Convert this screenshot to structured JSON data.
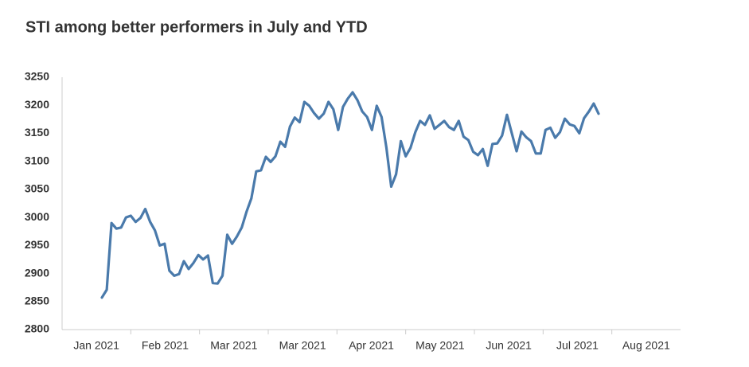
{
  "chart_data": {
    "type": "line",
    "title": "STI among better performers in July and YTD",
    "x_labels": [
      "Jan 2021",
      "Feb 2021",
      "Mar 2021",
      "Mar 2021",
      "Apr 2021",
      "May 2021",
      "Jun 2021",
      "Jul 2021",
      "Aug 2021"
    ],
    "color": "#4a7aab",
    "values": [
      2857,
      2871,
      2990,
      2980,
      2982,
      3000,
      3003,
      2992,
      2999,
      3015,
      2992,
      2977,
      2950,
      2953,
      2905,
      2896,
      2899,
      2922,
      2908,
      2919,
      2933,
      2925,
      2932,
      2883,
      2882,
      2896,
      2969,
      2953,
      2966,
      2982,
      3010,
      3034,
      3082,
      3084,
      3108,
      3099,
      3109,
      3135,
      3126,
      3162,
      3178,
      3170,
      3206,
      3199,
      3186,
      3176,
      3185,
      3206,
      3193,
      3156,
      3197,
      3212,
      3223,
      3209,
      3189,
      3179,
      3156,
      3199,
      3179,
      3125,
      3055,
      3077,
      3136,
      3109,
      3124,
      3152,
      3172,
      3165,
      3182,
      3158,
      3165,
      3172,
      3161,
      3156,
      3172,
      3144,
      3138,
      3117,
      3111,
      3122,
      3092,
      3131,
      3132,
      3146,
      3183,
      3150,
      3118,
      3153,
      3143,
      3136,
      3114,
      3114,
      3156,
      3160,
      3142,
      3152,
      3176,
      3166,
      3163,
      3150,
      3177,
      3189,
      3203,
      3185
    ],
    "ylim": [
      2800,
      3250
    ],
    "yticks": [
      2800,
      2850,
      2900,
      2950,
      3000,
      3050,
      3100,
      3150,
      3200,
      3250
    ]
  }
}
